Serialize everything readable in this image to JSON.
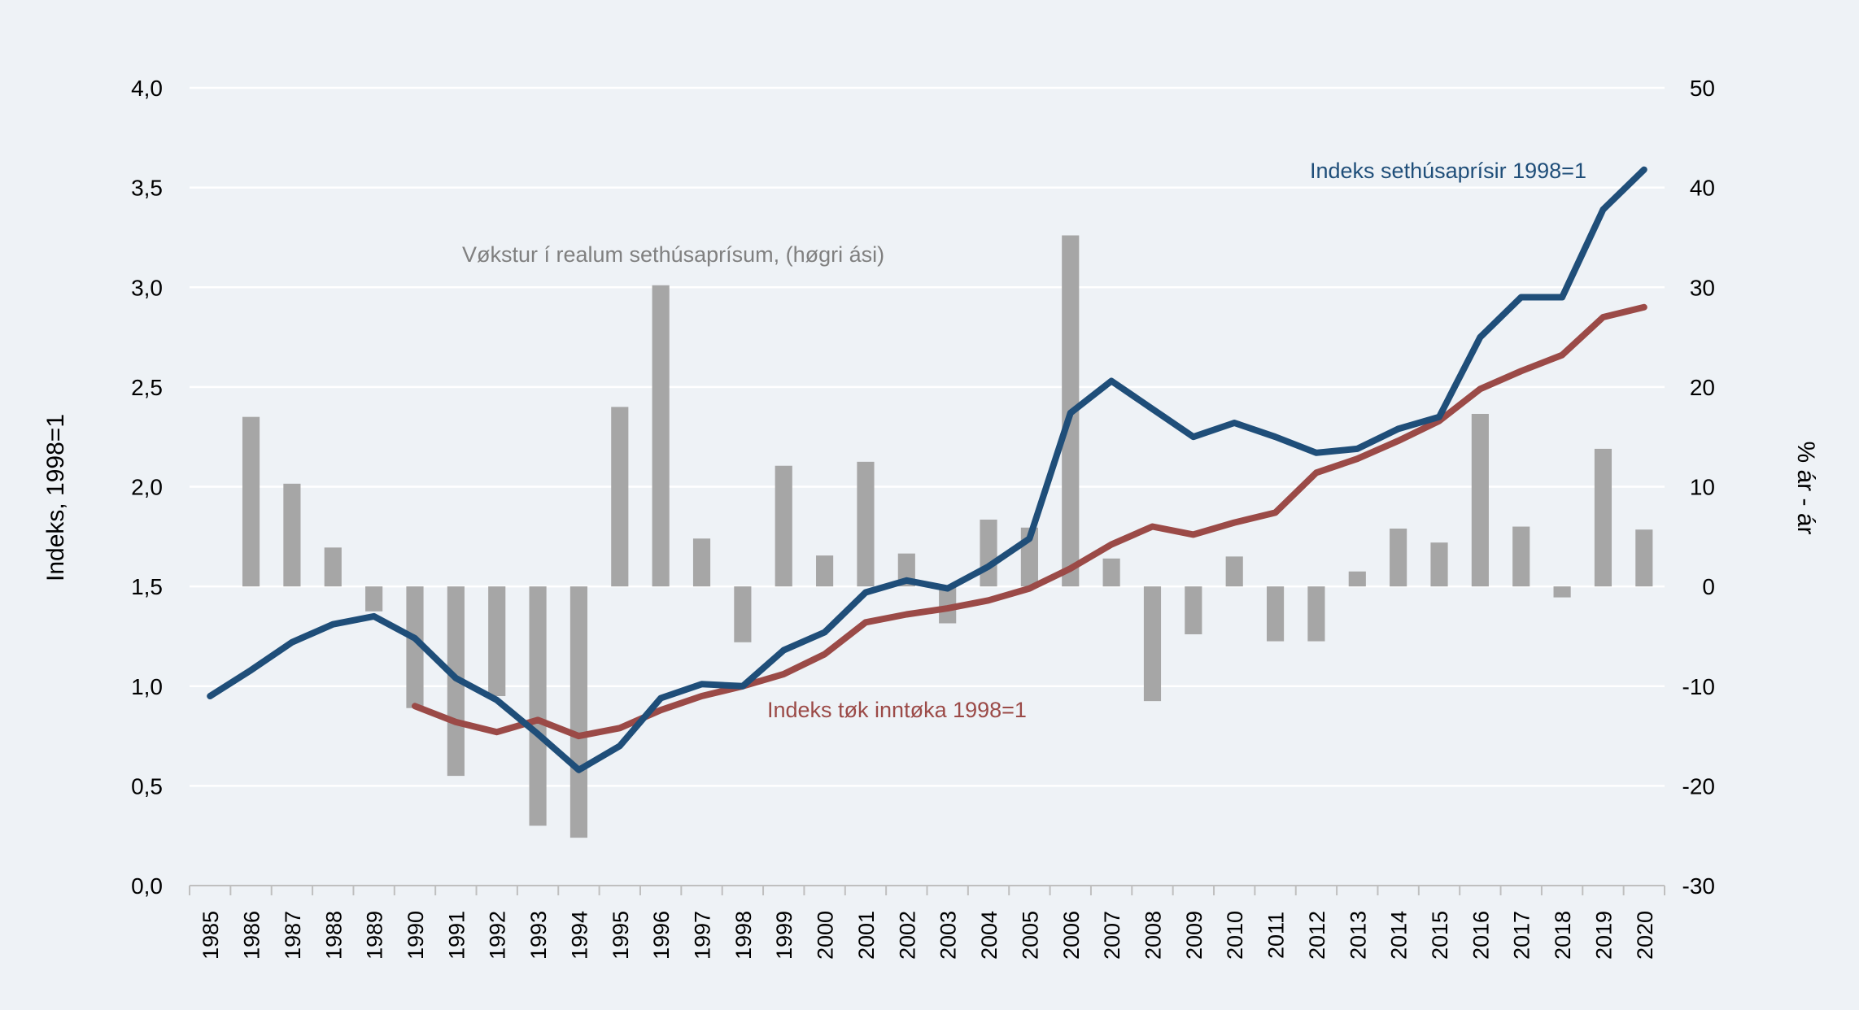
{
  "chart_data": {
    "type": "bar+line",
    "x": [
      "1985",
      "1986",
      "1987",
      "1988",
      "1989",
      "1990",
      "1991",
      "1992",
      "1993",
      "1994",
      "1995",
      "1996",
      "1997",
      "1998",
      "1999",
      "2000",
      "2001",
      "2002",
      "2003",
      "2004",
      "2005",
      "2006",
      "2007",
      "2008",
      "2009",
      "2010",
      "2011",
      "2012",
      "2013",
      "2014",
      "2015",
      "2016",
      "2017",
      "2018",
      "2019",
      "2020"
    ],
    "y_left": {
      "label": "Indeks, 1998=1",
      "range": [
        0,
        4
      ],
      "ticks": [
        "0,0",
        "0,5",
        "1,0",
        "1,5",
        "2,0",
        "2,5",
        "3,0",
        "3,5",
        "4,0"
      ]
    },
    "y_right": {
      "label": "% ár - ár",
      "range": [
        -30,
        50
      ],
      "ticks": [
        "-30",
        "-20",
        "-10",
        "0",
        "10",
        "20",
        "30",
        "40",
        "50"
      ]
    },
    "grid": true,
    "series": [
      {
        "name": "Vøkstur í realum sethúsaprísum, (høgri ási)",
        "type": "bar",
        "axis": "right",
        "color": "#a6a6a6",
        "values": [
          null,
          17.0,
          10.3,
          3.9,
          -2.5,
          -12.2,
          -19.0,
          -11.0,
          -24.0,
          -25.2,
          18.0,
          30.2,
          4.8,
          -5.6,
          12.1,
          3.1,
          12.5,
          3.3,
          -3.7,
          6.7,
          5.9,
          35.2,
          2.8,
          -11.5,
          -4.8,
          3.0,
          -5.5,
          -5.5,
          1.5,
          5.8,
          4.4,
          17.3,
          6.0,
          -1.1,
          13.8,
          5.7
        ]
      },
      {
        "name": "Indeks sethúsaprísir 1998=1",
        "type": "line",
        "axis": "left",
        "color": "#1f4e79",
        "values": [
          0.95,
          1.08,
          1.22,
          1.31,
          1.35,
          1.24,
          1.04,
          0.93,
          0.76,
          0.58,
          0.7,
          0.94,
          1.01,
          1.0,
          1.18,
          1.27,
          1.47,
          1.53,
          1.49,
          1.6,
          1.74,
          2.37,
          2.53,
          2.39,
          2.25,
          2.32,
          2.25,
          2.17,
          2.19,
          2.29,
          2.35,
          2.75,
          2.95,
          2.95,
          3.39,
          3.59
        ]
      },
      {
        "name": "Indeks tøk inntøka 1998=1",
        "type": "line",
        "axis": "left",
        "color": "#9b4a47",
        "values": [
          null,
          null,
          null,
          null,
          null,
          0.9,
          0.82,
          0.77,
          0.83,
          0.75,
          0.79,
          0.88,
          0.95,
          1.0,
          1.06,
          1.16,
          1.32,
          1.36,
          1.39,
          1.43,
          1.49,
          1.59,
          1.71,
          1.8,
          1.76,
          1.82,
          1.87,
          2.07,
          2.14,
          2.23,
          2.33,
          2.49,
          2.58,
          2.66,
          2.85,
          2.9
        ]
      }
    ]
  }
}
